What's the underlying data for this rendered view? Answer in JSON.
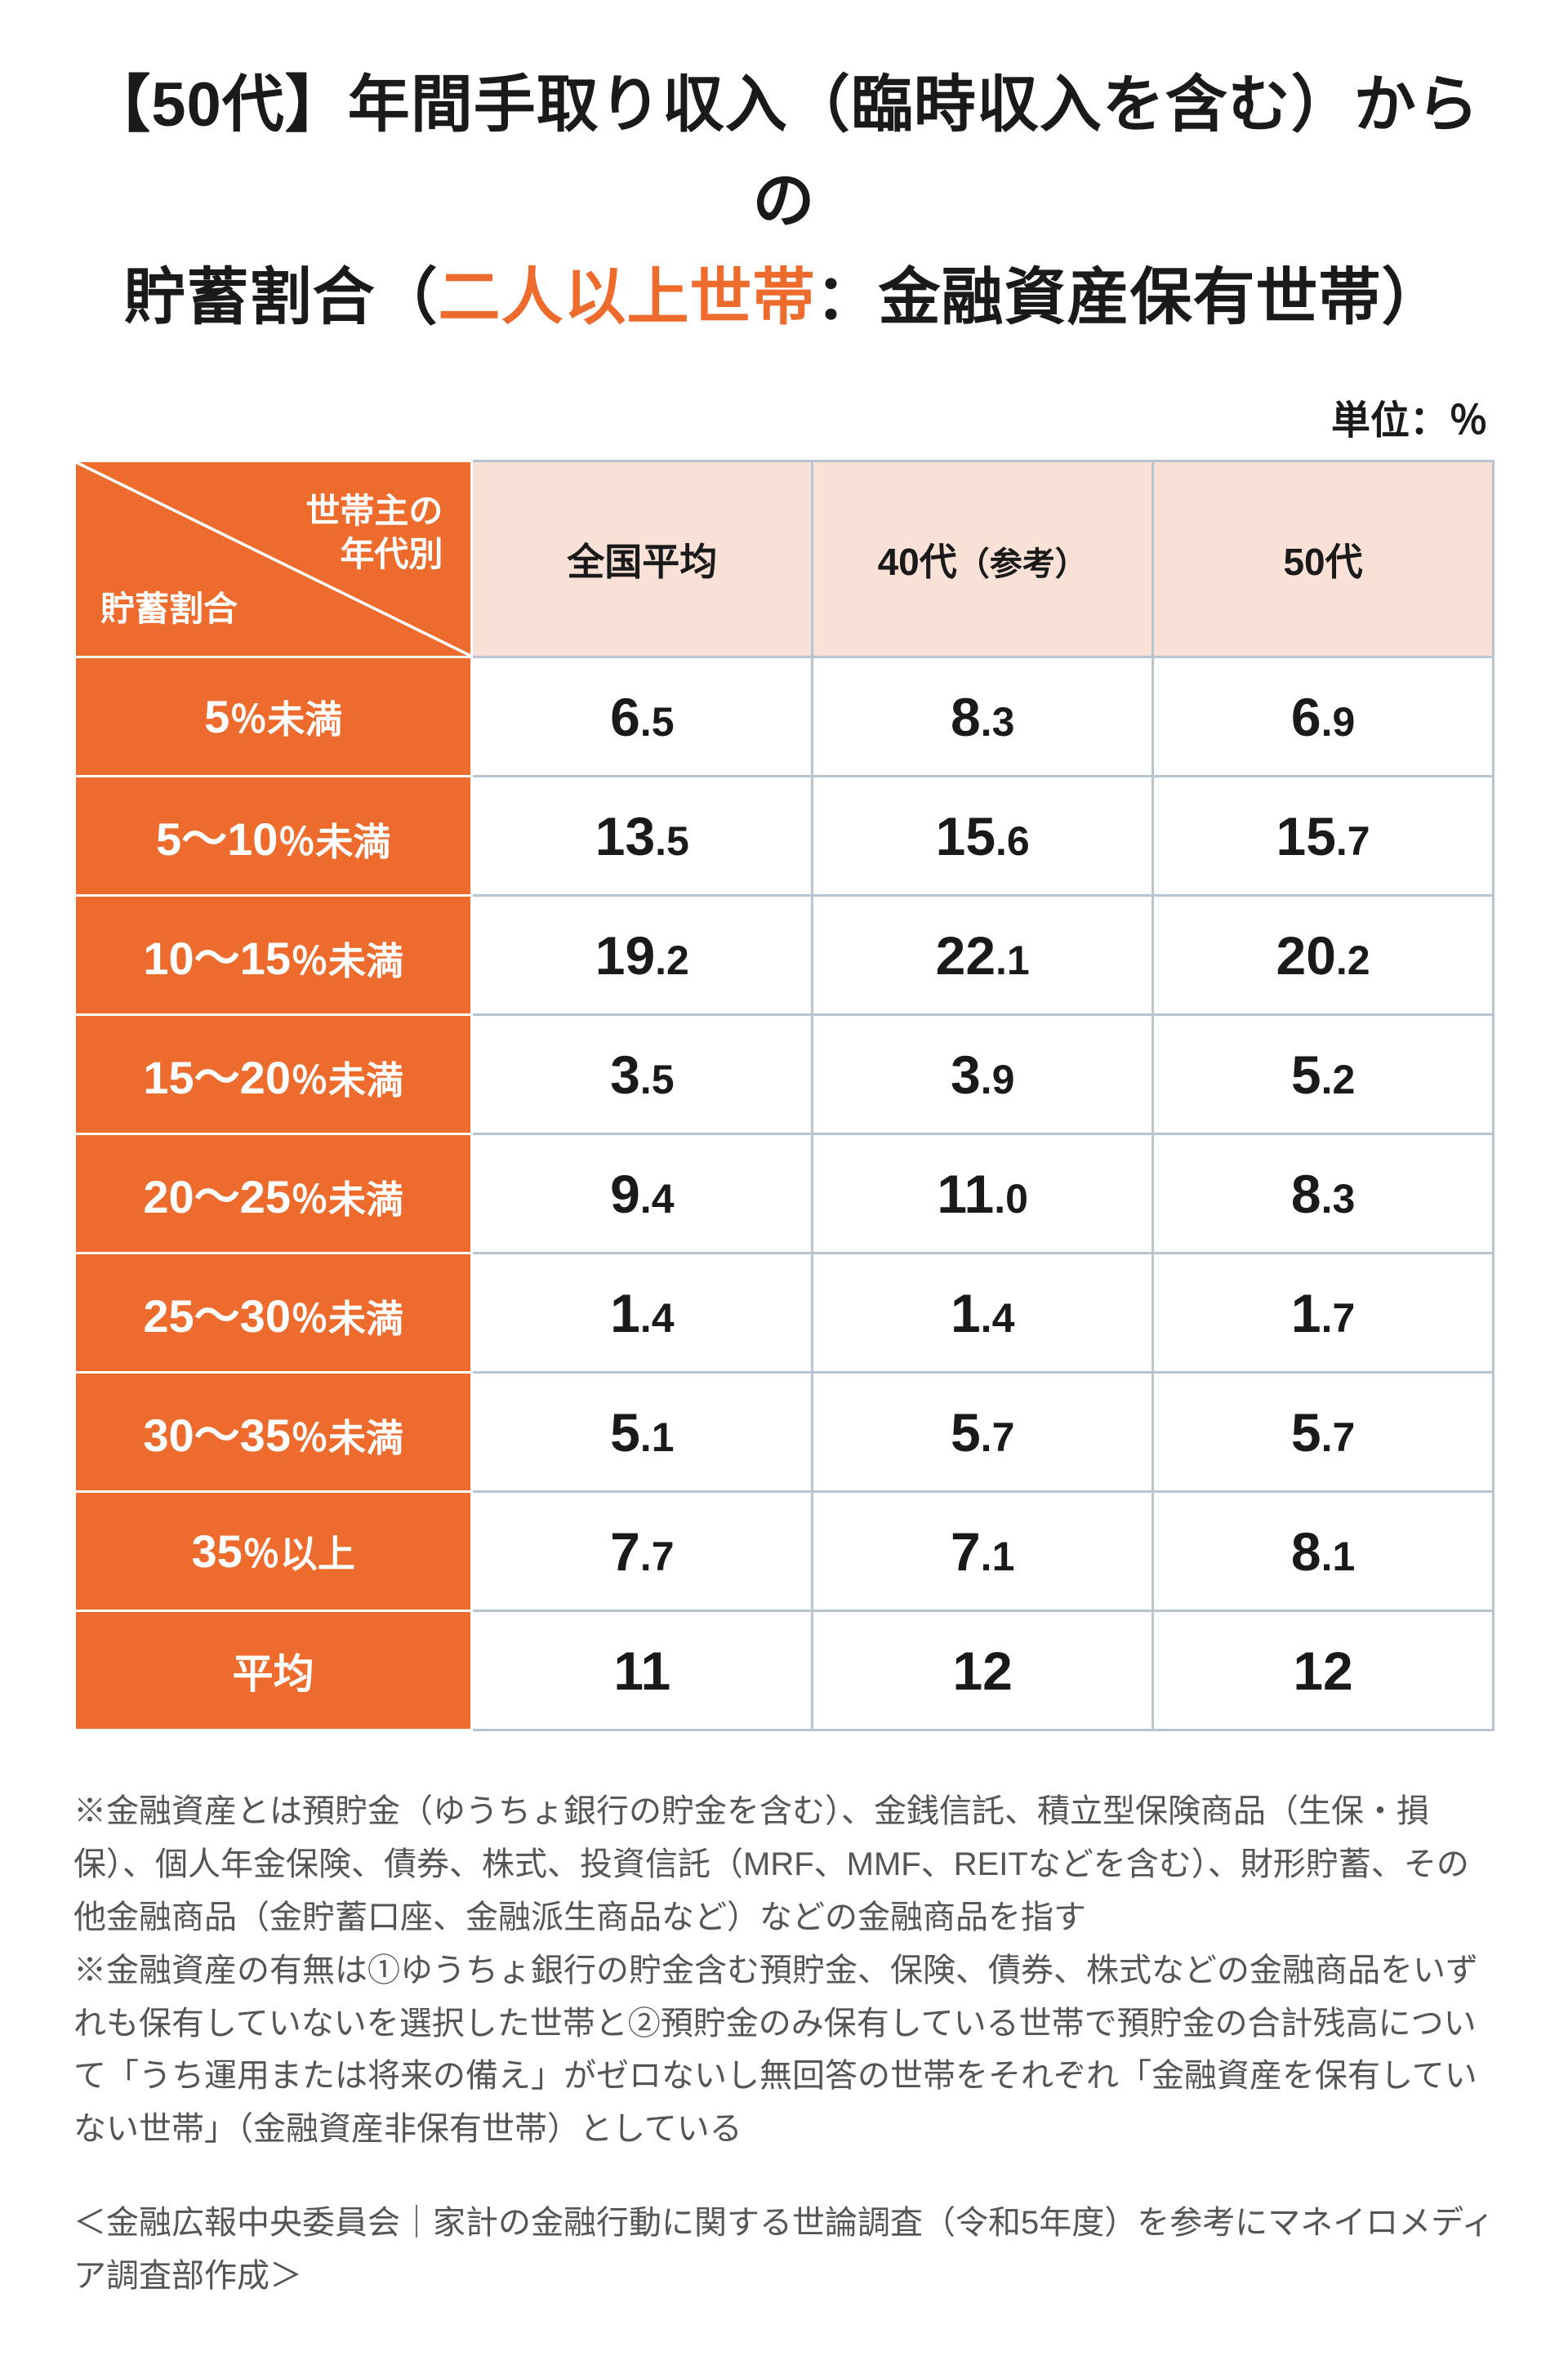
{
  "colors": {
    "accent": "#ec6b2d",
    "header_bg": "#f9e1d7",
    "header_border": "#ffffff",
    "row_border": "#ffffff",
    "cell_border": "#b8c5d1",
    "text": "#1a1a1a",
    "note_text": "#555555",
    "white": "#ffffff"
  },
  "title": {
    "line1_a": "【50代】年間手取り収入",
    "line1_b": "（臨時収入を含む）",
    "line1_c": "からの",
    "line2_a": "貯蓄割合",
    "line2_b": "（",
    "line2_accent": "二人以上世帯",
    "line2_c": "：金融資産保有世帯）"
  },
  "unit_label": "単位：％",
  "header": {
    "corner_top1": "世帯主の",
    "corner_top2": "年代別",
    "corner_bottom": "貯蓄割合",
    "col1": "全国平均",
    "col2_a": "40代",
    "col2_b": "（参考）",
    "col3": "50代"
  },
  "rows": [
    {
      "label_big": "5",
      "label_suffix": "％未満",
      "v": [
        "6.5",
        "8.3",
        "6.9"
      ]
    },
    {
      "label_big": "5～10",
      "label_suffix": "％未満",
      "v": [
        "13.5",
        "15.6",
        "15.7"
      ]
    },
    {
      "label_big": "10～15",
      "label_suffix": "％未満",
      "v": [
        "19.2",
        "22.1",
        "20.2"
      ]
    },
    {
      "label_big": "15～20",
      "label_suffix": "％未満",
      "v": [
        "3.5",
        "3.9",
        "5.2"
      ]
    },
    {
      "label_big": "20～25",
      "label_suffix": "％未満",
      "v": [
        "9.4",
        "11.0",
        "8.3"
      ]
    },
    {
      "label_big": "25～30",
      "label_suffix": "％未満",
      "v": [
        "1.4",
        "1.4",
        "1.7"
      ]
    },
    {
      "label_big": "30～35",
      "label_suffix": "％未満",
      "v": [
        "5.1",
        "5.7",
        "5.7"
      ]
    },
    {
      "label_big": "35",
      "label_suffix": "％以上",
      "v": [
        "7.7",
        "7.1",
        "8.1"
      ]
    },
    {
      "label_big": "",
      "label_suffix": "平均",
      "v": [
        "11",
        "12",
        "12"
      ],
      "is_avg": true
    }
  ],
  "notes_text": "※金融資産とは預貯金（ゆうちょ銀行の貯金を含む）、金銭信託、積立型保険商品（生保・損保）、個人年金保険、債券、株式、投資信託（MRF、MMF、REITなどを含む）、財形貯蓄、その他金融商品（金貯蓄口座、金融派生商品など）などの金融商品を指す\n※金融資産の有無は①ゆうちょ銀行の貯金含む預貯金、保険、債券、株式などの金融商品をいずれも保有していないを選択した世帯と②預貯金のみ保有している世帯で預貯金の合計残高について「うち運用または将来の備え」がゼロないし無回答の世帯をそれぞれ「金融資産を保有していない世帯」（金融資産非保有世帯）としている",
  "source_text": "＜金融広報中央委員会｜家計の金融行動に関する世論調査（令和5年度）を参考にマネイロメディア調査部作成＞"
}
